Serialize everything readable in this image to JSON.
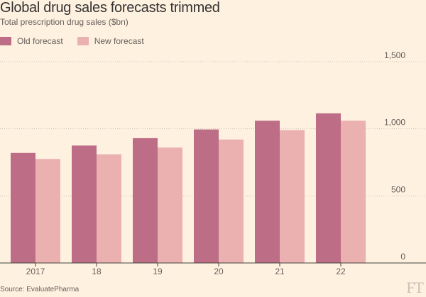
{
  "header": {
    "title": "Global drug sales forecasts trimmed",
    "subtitle": "Total prescription drug sales ($bn)"
  },
  "source": "Source: EvaluatePharma",
  "logo": "FT",
  "colors": {
    "background": "#fff1e0",
    "old_forecast": "#bd6e86",
    "new_forecast": "#ebb1b1",
    "gridline": "#ccc1b7",
    "axis": "#43423e",
    "text": "#66605c"
  },
  "chart_data": {
    "type": "bar",
    "title": "Global drug sales forecasts trimmed",
    "subtitle": "Total prescription drug sales ($bn)",
    "categories": [
      "2017",
      "18",
      "19",
      "20",
      "21",
      "22"
    ],
    "series": [
      {
        "name": "Old forecast",
        "values": [
          820,
          875,
          930,
          995,
          1060,
          1115
        ]
      },
      {
        "name": "New forecast",
        "values": [
          775,
          810,
          860,
          920,
          990,
          1060
        ]
      }
    ],
    "ylim": [
      0,
      1500
    ],
    "yticks": [
      0,
      500,
      1000,
      1500
    ],
    "ytick_labels": [
      "0",
      "500",
      "1,000",
      "1,500"
    ],
    "grid": true,
    "legend": "top-left"
  }
}
